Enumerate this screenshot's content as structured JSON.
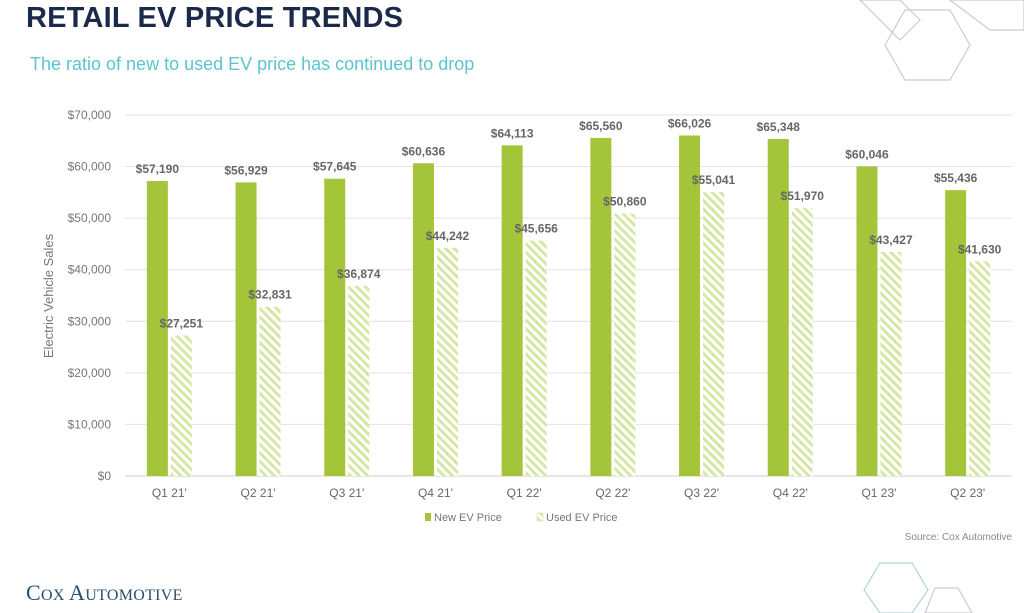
{
  "header": {
    "title": "RETAIL EV PRICE TRENDS",
    "subtitle": "The ratio of new to used EV price has continued to drop"
  },
  "footer": {
    "source": "Source: Cox Automotive",
    "logo_text": "COX AUTOMOTIVE"
  },
  "colors": {
    "new": "#a4c43a",
    "used_stripe": "#d6e6a4",
    "title": "#1b2a4a",
    "subtitle": "#5bc4cf"
  },
  "chart_data": {
    "type": "bar",
    "title": "",
    "xlabel": "",
    "ylabel": "Electric Vehicle Sales",
    "ylim": [
      0,
      70000
    ],
    "yticks": [
      "$0",
      "$10,000",
      "$20,000",
      "$30,000",
      "$40,000",
      "$50,000",
      "$60,000",
      "$70,000"
    ],
    "grid": true,
    "legend_position": "bottom",
    "categories": [
      "Q1 21'",
      "Q2 21'",
      "Q3 21'",
      "Q4 21'",
      "Q1 22'",
      "Q2 22'",
      "Q3 22'",
      "Q4 22'",
      "Q1 23'",
      "Q2 23'"
    ],
    "series": [
      {
        "name": "New EV Price",
        "values": [
          57190,
          56929,
          57645,
          60636,
          64113,
          65560,
          66026,
          65348,
          60046,
          55436
        ],
        "labels": [
          "$57,190",
          "$56,929",
          "$57,645",
          "$60,636",
          "$64,113",
          "$65,560",
          "$66,026",
          "$65,348",
          "$60,046",
          "$55,436"
        ]
      },
      {
        "name": "Used EV Price",
        "values": [
          27251,
          32831,
          36874,
          44242,
          45656,
          50860,
          55041,
          51970,
          43427,
          41630
        ],
        "labels": [
          "$27,251",
          "$32,831",
          "$36,874",
          "$44,242",
          "$45,656",
          "$50,860",
          "$55,041",
          "$51,970",
          "$43,427",
          "$41,630"
        ]
      }
    ]
  }
}
